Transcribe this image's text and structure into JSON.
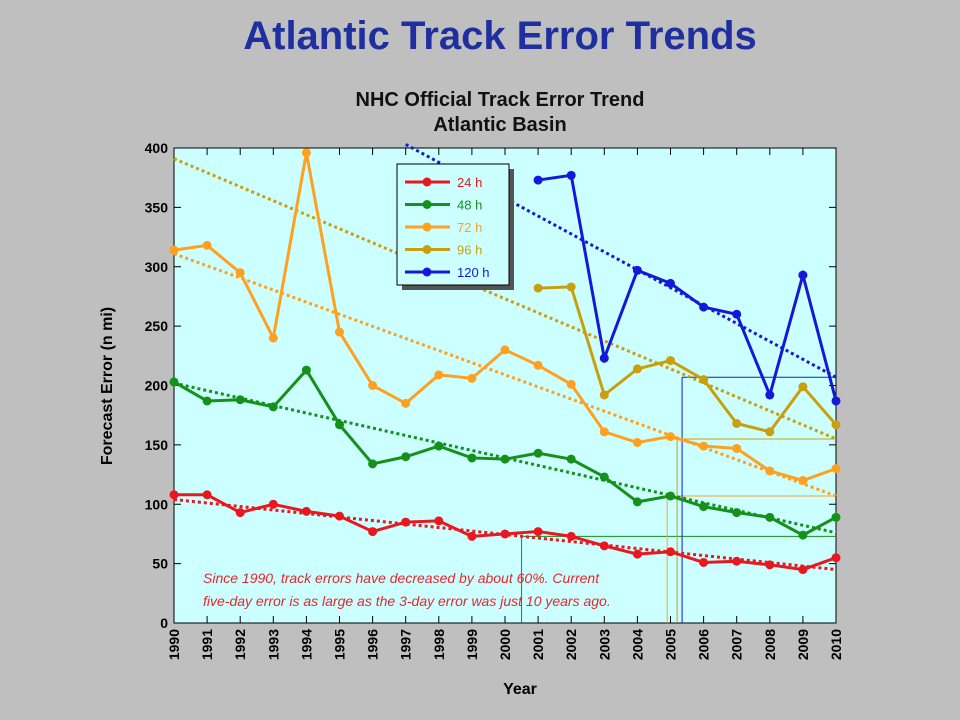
{
  "slide_title": "Atlantic Track Error Trends",
  "chart_data": {
    "type": "line",
    "title": "NHC Official Track Error Trend",
    "subtitle": "Atlantic Basin",
    "xlabel": "Year",
    "ylabel": "Forecast Error (n mi)",
    "xlim": [
      1990,
      2010
    ],
    "ylim": [
      0,
      400
    ],
    "yticks": [
      "0",
      "50",
      "100",
      "150",
      "200",
      "250",
      "300",
      "350",
      "400"
    ],
    "xticks": [
      "1990",
      "1991",
      "1992",
      "1993",
      "1994",
      "1995",
      "1996",
      "1997",
      "1998",
      "1999",
      "2000",
      "2001",
      "2002",
      "2003",
      "2004",
      "2005",
      "2006",
      "2007",
      "2008",
      "2009",
      "2010"
    ],
    "plot_background": "#ccffff",
    "grid": false,
    "legend_position": "top-left",
    "series": [
      {
        "name": "24 h",
        "color": "#e8181e",
        "x": [
          1990,
          1991,
          1992,
          1993,
          1994,
          1995,
          1996,
          1997,
          1998,
          1999,
          2000,
          2001,
          2002,
          2003,
          2004,
          2005,
          2006,
          2007,
          2008,
          2009,
          2010
        ],
        "values": [
          108,
          108,
          93,
          100,
          94,
          90,
          77,
          85,
          86,
          73,
          75,
          77,
          73,
          65,
          58,
          60,
          51,
          52,
          49,
          45,
          55
        ],
        "trend": [
          104,
          45
        ]
      },
      {
        "name": "48 h",
        "color": "#15901a",
        "x": [
          1990,
          1991,
          1992,
          1993,
          1994,
          1995,
          1996,
          1997,
          1998,
          1999,
          2000,
          2001,
          2002,
          2003,
          2004,
          2005,
          2006,
          2007,
          2008,
          2009,
          2010
        ],
        "values": [
          203,
          187,
          188,
          182,
          213,
          167,
          134,
          140,
          149,
          139,
          138,
          143,
          138,
          123,
          102,
          107,
          98,
          93,
          89,
          74,
          89
        ],
        "trend": [
          202,
          76
        ]
      },
      {
        "name": "72 h",
        "color": "#ffa020",
        "x": [
          1990,
          1991,
          1992,
          1993,
          1994,
          1995,
          1996,
          1997,
          1998,
          1999,
          2000,
          2001,
          2002,
          2003,
          2004,
          2005,
          2006,
          2007,
          2008,
          2009,
          2010
        ],
        "values": [
          314,
          318,
          295,
          240,
          396,
          245,
          200,
          185,
          209,
          206,
          230,
          217,
          201,
          161,
          152,
          157,
          149,
          147,
          128,
          120,
          130
        ],
        "trend": [
          311,
          107
        ]
      },
      {
        "name": "96 h",
        "color": "#c8a00e",
        "x": [
          2001,
          2002,
          2003,
          2004,
          2005,
          2006,
          2007,
          2008,
          2009,
          2010
        ],
        "values": [
          282,
          283,
          192,
          214,
          221,
          205,
          168,
          161,
          199,
          167
        ],
        "trend_x": [
          1990,
          2010
        ],
        "trend": [
          391,
          155
        ]
      },
      {
        "name": "120 h",
        "color": "#1418d8",
        "x": [
          2001,
          2002,
          2003,
          2004,
          2005,
          2006,
          2007,
          2008,
          2009,
          2010
        ],
        "values": [
          373,
          377,
          223,
          297,
          286,
          266,
          260,
          192,
          293,
          187
        ],
        "trend_x": [
          1997,
          2010
        ],
        "trend": [
          403,
          207
        ]
      }
    ],
    "annotation": [
      "Since 1990, track errors have decreased by about 60%.  Current",
      "five-day error is as large as the 3-day error was just 10 years ago."
    ]
  }
}
